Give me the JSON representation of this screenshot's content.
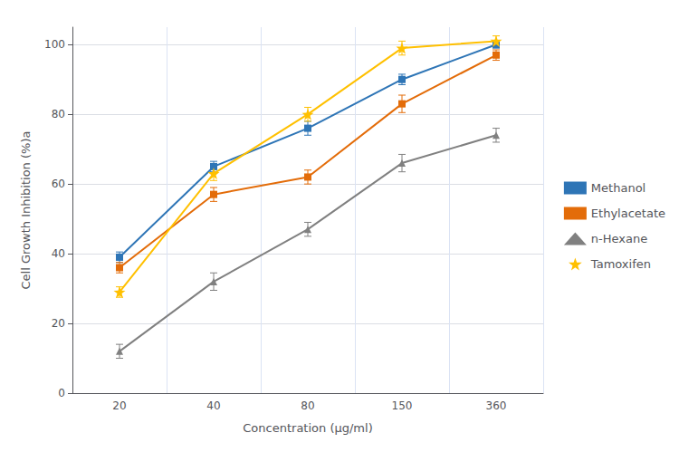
{
  "chart_data": {
    "type": "line",
    "xlabel": "Concentration (μg/ml)",
    "ylabel": "Cell Growth Inhibition (%)a",
    "categories": [
      "20",
      "40",
      "80",
      "150",
      "360"
    ],
    "series": [
      {
        "name": "Methanol",
        "color": "#2E75B6",
        "marker": "square",
        "values": [
          39,
          65,
          76,
          90,
          100
        ],
        "errors": [
          1.5,
          1.5,
          2.0,
          1.5,
          1.0
        ]
      },
      {
        "name": "Ethylacetate",
        "color": "#E36C09",
        "marker": "square",
        "values": [
          36,
          57,
          62,
          83,
          97
        ],
        "errors": [
          1.5,
          2.0,
          2.0,
          2.5,
          1.5
        ]
      },
      {
        "name": "n-Hexane",
        "color": "#808080",
        "marker": "triangle",
        "values": [
          12,
          32,
          47,
          66,
          74
        ],
        "errors": [
          2.0,
          2.5,
          2.0,
          2.5,
          2.0
        ]
      },
      {
        "name": "Tamoxifen",
        "color": "#FFC000",
        "marker": "star",
        "values": [
          29,
          63,
          80,
          99,
          101
        ],
        "errors": [
          1.5,
          2.0,
          2.0,
          2.0,
          1.5
        ]
      }
    ],
    "ylim": [
      0,
      105
    ],
    "yticks": [
      0,
      20,
      40,
      60,
      80,
      100
    ],
    "grid": true,
    "legend": "right"
  }
}
